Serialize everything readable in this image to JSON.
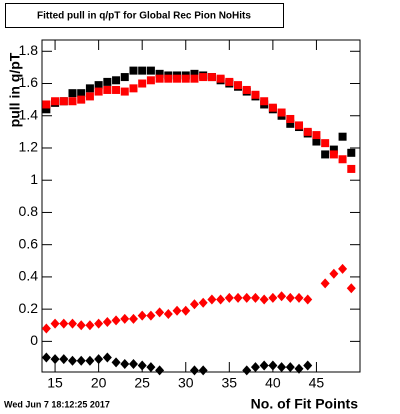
{
  "chart_data": {
    "type": "scatter",
    "title": "Fitted pull in q/pT for Global Rec Pion NoHits",
    "y_label": "pull in q/pT",
    "x_label": "No. of Fit Points",
    "timestamp": "Wed Jun  7 18:12:25 2017",
    "x": [
      14,
      15,
      16,
      17,
      18,
      19,
      20,
      21,
      22,
      23,
      24,
      25,
      26,
      27,
      28,
      29,
      30,
      31,
      32,
      33,
      34,
      35,
      36,
      37,
      38,
      39,
      40,
      41,
      42,
      43,
      44,
      45,
      46,
      47,
      48,
      49
    ],
    "xlim": [
      13.5,
      50
    ],
    "xticks": [
      15,
      20,
      25,
      30,
      35,
      40,
      45
    ],
    "ylim": [
      -0.19,
      1.87
    ],
    "yticks": [
      0,
      0.2,
      0.4,
      0.6,
      0.8,
      1,
      1.2,
      1.4,
      1.6,
      1.8
    ],
    "series": [
      {
        "color": "#000000",
        "marker": "square",
        "values": [
          1.44,
          1.48,
          1.49,
          1.54,
          1.54,
          1.57,
          1.59,
          1.61,
          1.62,
          1.64,
          1.68,
          1.68,
          1.68,
          1.66,
          1.65,
          1.65,
          1.65,
          1.66,
          1.65,
          1.64,
          1.62,
          1.6,
          1.58,
          1.55,
          1.52,
          1.47,
          1.44,
          1.4,
          1.35,
          1.33,
          1.29,
          1.24,
          1.16,
          1.19,
          1.27,
          1.17
        ]
      },
      {
        "color": "#ff0000",
        "marker": "square",
        "values": [
          1.47,
          1.49,
          1.49,
          1.49,
          1.5,
          1.52,
          1.55,
          1.56,
          1.56,
          1.55,
          1.57,
          1.6,
          1.62,
          1.63,
          1.63,
          1.63,
          1.63,
          1.63,
          1.64,
          1.64,
          1.63,
          1.61,
          1.59,
          1.56,
          1.53,
          1.49,
          1.45,
          1.42,
          1.38,
          1.34,
          1.3,
          1.28,
          1.23,
          1.16,
          1.13,
          1.07
        ]
      },
      {
        "color": "#ff0000",
        "marker": "diamond",
        "values": [
          0.08,
          0.11,
          0.11,
          0.11,
          0.1,
          0.1,
          0.11,
          0.12,
          0.13,
          0.14,
          0.14,
          0.16,
          0.16,
          0.18,
          0.17,
          0.19,
          0.19,
          0.23,
          0.24,
          0.26,
          0.26,
          0.27,
          0.27,
          0.27,
          0.27,
          0.26,
          0.27,
          0.28,
          0.27,
          0.27,
          0.26,
          null,
          0.36,
          0.42,
          0.45,
          0.33
        ]
      },
      {
        "color": "#000000",
        "marker": "diamond",
        "values": [
          -0.1,
          -0.11,
          -0.11,
          -0.12,
          -0.12,
          -0.12,
          -0.11,
          -0.1,
          -0.13,
          -0.14,
          -0.14,
          -0.15,
          -0.16,
          -0.18,
          null,
          null,
          null,
          -0.18,
          -0.18,
          null,
          null,
          null,
          null,
          -0.18,
          -0.16,
          -0.15,
          -0.15,
          -0.16,
          -0.16,
          -0.17,
          -0.15,
          null,
          null,
          null,
          null,
          null
        ]
      }
    ]
  }
}
